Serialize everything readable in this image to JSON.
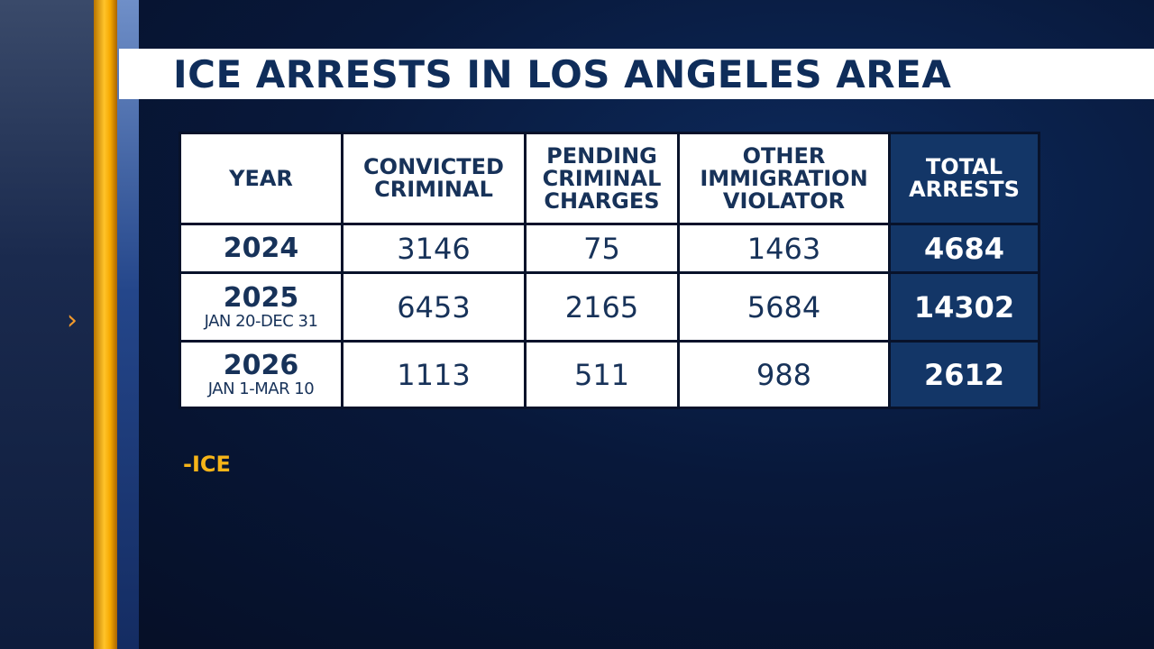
{
  "title": "ICE ARRESTS IN LOS ANGELES AREA",
  "source": "-ICE",
  "accent_colors": {
    "gold": "#ffc42a",
    "navy": "#133667",
    "title_text": "#0f2d5a",
    "arrow": "#f29a2c"
  },
  "icons": {
    "side_arrow": "chevron-right-icon"
  },
  "chart_data": {
    "type": "table",
    "title": "ICE ARRESTS IN LOS ANGELES AREA",
    "columns": [
      "YEAR",
      "CONVICTED CRIMINAL",
      "PENDING CRIMINAL CHARGES",
      "OTHER IMMIGRATION VIOLATOR",
      "TOTAL ARRESTS"
    ],
    "rows": [
      {
        "year": "2024",
        "period": "",
        "convicted_criminal": "3146",
        "pending_criminal_charges": "75",
        "other_immigration_violator": "1463",
        "total_arrests": "4684"
      },
      {
        "year": "2025",
        "period": "JAN 20-DEC 31",
        "convicted_criminal": "6453",
        "pending_criminal_charges": "2165",
        "other_immigration_violator": "5684",
        "total_arrests": "14302"
      },
      {
        "year": "2026",
        "period": "JAN 1-MAR 10",
        "convicted_criminal": "1113",
        "pending_criminal_charges": "511",
        "other_immigration_violator": "988",
        "total_arrests": "2612"
      }
    ]
  }
}
